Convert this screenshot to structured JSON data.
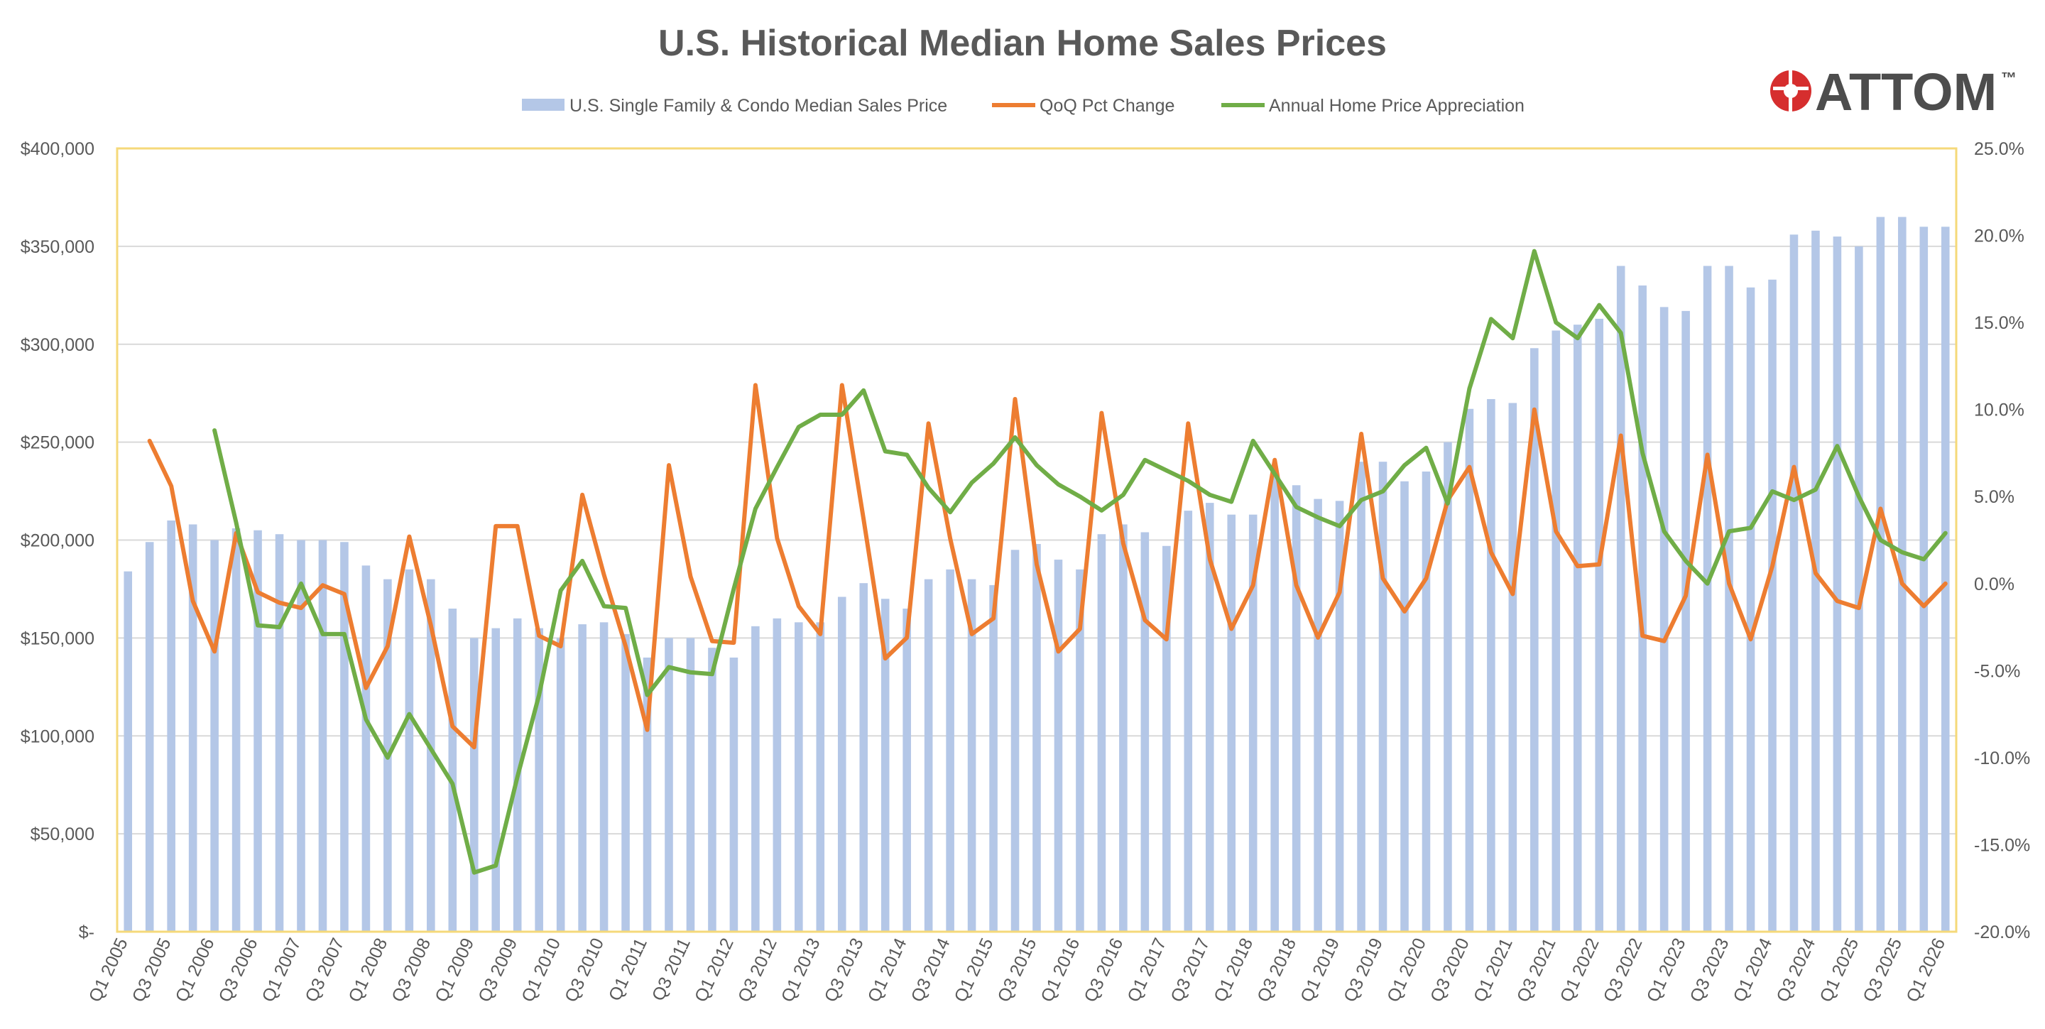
{
  "chart_data": {
    "type": "bar",
    "title": "U.S. Historical Median Home Sales Prices",
    "brand": "ATTOM",
    "trademark": "™",
    "legend": {
      "placement": "top-center",
      "items": [
        {
          "label": "U.S. Single Family & Condo Median Sales Price",
          "type": "bar",
          "color": "#b4c7e7"
        },
        {
          "label": "QoQ Pct Change",
          "type": "line",
          "color": "#ed7d31"
        },
        {
          "label": "Annual Home Price Appreciation",
          "type": "line",
          "color": "#70ad47"
        }
      ]
    },
    "colors": {
      "bars": "#b4c7e7",
      "qoq": "#ed7d31",
      "annual": "#70ad47",
      "plot_border": "#f5d97a",
      "grid": "#d9d9d9",
      "logo_red": "#d62e2e"
    },
    "grid": true,
    "y_left": {
      "ylim": [
        0,
        400000
      ],
      "ticks": [
        "$-",
        "$50,000",
        "$100,000",
        "$150,000",
        "$200,000",
        "$250,000",
        "$300,000",
        "$350,000",
        "$400,000"
      ]
    },
    "y_right": {
      "ylim": [
        -20,
        25
      ],
      "ticks": [
        "-20.0%",
        "-15.0%",
        "-10.0%",
        "-5.0%",
        "0.0%",
        "5.0%",
        "10.0%",
        "15.0%",
        "20.0%",
        "25.0%"
      ]
    },
    "x_tick_labels": [
      "Q1 2005",
      "Q3 2005",
      "Q1 2006",
      "Q3 2006",
      "Q1 2007",
      "Q3 2007",
      "Q1 2008",
      "Q3 2008",
      "Q1 2009",
      "Q3 2009",
      "Q1 2010",
      "Q3 2010",
      "Q1 2011",
      "Q3 2011",
      "Q1 2012",
      "Q3 2012",
      "Q1 2013",
      "Q3 2013",
      "Q1 2014",
      "Q3 2014",
      "Q1 2015",
      "Q3 2015",
      "Q1 2016",
      "Q3 2016",
      "Q1 2017",
      "Q3 2017",
      "Q1 2018",
      "Q3 2018",
      "Q1 2019",
      "Q3 2019",
      "Q1 2020",
      "Q3 2020",
      "Q1 2021",
      "Q3 2021",
      "Q1 2022",
      "Q3 2022",
      "Q1 2023",
      "Q3 2023",
      "Q1 2024",
      "Q3 2024",
      "Q1 2025",
      "Q3 2025",
      "Q1 2026"
    ],
    "categories": [
      "Q1 2005",
      "Q2 2005",
      "Q3 2005",
      "Q4 2005",
      "Q1 2006",
      "Q2 2006",
      "Q3 2006",
      "Q4 2006",
      "Q1 2007",
      "Q2 2007",
      "Q3 2007",
      "Q4 2007",
      "Q1 2008",
      "Q2 2008",
      "Q3 2008",
      "Q4 2008",
      "Q1 2009",
      "Q2 2009",
      "Q3 2009",
      "Q4 2009",
      "Q1 2010",
      "Q2 2010",
      "Q3 2010",
      "Q4 2010",
      "Q1 2011",
      "Q2 2011",
      "Q3 2011",
      "Q4 2011",
      "Q1 2012",
      "Q2 2012",
      "Q3 2012",
      "Q4 2012",
      "Q1 2013",
      "Q2 2013",
      "Q3 2013",
      "Q4 2013",
      "Q1 2014",
      "Q2 2014",
      "Q3 2014",
      "Q4 2014",
      "Q1 2015",
      "Q2 2015",
      "Q3 2015",
      "Q4 2015",
      "Q1 2016",
      "Q2 2016",
      "Q3 2016",
      "Q4 2016",
      "Q1 2017",
      "Q2 2017",
      "Q3 2017",
      "Q4 2017",
      "Q1 2018",
      "Q2 2018",
      "Q3 2018",
      "Q4 2018",
      "Q1 2019",
      "Q2 2019",
      "Q3 2019",
      "Q4 2019",
      "Q1 2020",
      "Q2 2020",
      "Q3 2020",
      "Q4 2020",
      "Q1 2021",
      "Q2 2021",
      "Q3 2021",
      "Q4 2021",
      "Q1 2022",
      "Q2 2022",
      "Q3 2022",
      "Q4 2022",
      "Q1 2023",
      "Q2 2023",
      "Q3 2023",
      "Q4 2023",
      "Q1 2024",
      "Q2 2024",
      "Q3 2024",
      "Q4 2024",
      "Q1 2025",
      "Q2 2025",
      "Q3 2025",
      "Q4 2025",
      "Q1 2026"
    ],
    "series": [
      {
        "name": "U.S. Single Family & Condo Median Sales Price",
        "axis": "left",
        "type": "bar",
        "values": [
          184000,
          199000,
          210000,
          208000,
          200000,
          206000,
          205000,
          203000,
          200000,
          200000,
          199000,
          187000,
          180000,
          185000,
          180000,
          165000,
          150000,
          155000,
          160000,
          155000,
          150000,
          157000,
          158000,
          152000,
          140000,
          150000,
          150000,
          145000,
          140000,
          156000,
          160000,
          158000,
          158000,
          171000,
          178000,
          170000,
          165000,
          180000,
          185000,
          180000,
          177000,
          195000,
          198000,
          190000,
          185000,
          203000,
          208000,
          204000,
          197000,
          215000,
          219000,
          213000,
          213000,
          232000,
          228000,
          221000,
          220000,
          240000,
          240000,
          230000,
          235000,
          250000,
          267000,
          272000,
          270000,
          298000,
          307000,
          310000,
          313000,
          340000,
          330000,
          319000,
          317000,
          340000,
          340000,
          329000,
          333000,
          356000,
          358000,
          355000,
          350000,
          365000,
          365000,
          360000,
          360000
        ]
      },
      {
        "name": "QoQ Pct Change",
        "axis": "right",
        "type": "line",
        "values": [
          null,
          8.2,
          5.6,
          -1.0,
          -3.9,
          2.9,
          -0.5,
          -1.1,
          -1.4,
          -0.1,
          -0.6,
          -6.0,
          -3.6,
          2.7,
          -2.4,
          -8.2,
          -9.4,
          3.3,
          3.3,
          -3.0,
          -3.6,
          5.1,
          0.5,
          -3.6,
          -8.4,
          6.8,
          0.4,
          -3.3,
          -3.4,
          11.4,
          2.6,
          -1.3,
          -2.9,
          11.4,
          3.7,
          -4.3,
          -3.1,
          9.2,
          2.6,
          -2.9,
          -2.0,
          10.6,
          1.1,
          -3.9,
          -2.6,
          9.8,
          2.3,
          -2.1,
          -3.2,
          9.2,
          1.4,
          -2.6,
          -0.1,
          7.1,
          -0.1,
          -3.1,
          -0.5,
          8.6,
          0.3,
          -1.6,
          0.3,
          4.8,
          6.7,
          1.8,
          -0.6,
          10.0,
          3.0,
          1.0,
          1.1,
          8.5,
          -3.0,
          -3.3,
          -0.7,
          7.4,
          0.0,
          -3.2,
          1.0,
          6.7,
          0.6,
          -1.0,
          -1.4,
          4.3,
          0.0,
          -1.3,
          0.0
        ]
      },
      {
        "name": "Annual Home Price Appreciation",
        "axis": "right",
        "type": "line",
        "values": [
          null,
          null,
          null,
          null,
          8.8,
          3.5,
          -2.4,
          -2.5,
          0.0,
          -2.9,
          -2.9,
          -7.8,
          -10.0,
          -7.5,
          -9.5,
          -11.5,
          -16.6,
          -16.2,
          -11.1,
          -6.4,
          -0.4,
          1.3,
          -1.3,
          -1.4,
          -6.4,
          -4.8,
          -5.1,
          -5.2,
          -0.3,
          4.3,
          6.7,
          9.0,
          9.7,
          9.7,
          11.1,
          7.6,
          7.4,
          5.5,
          4.1,
          5.8,
          6.9,
          8.4,
          6.8,
          5.7,
          5.0,
          4.2,
          5.1,
          7.1,
          6.5,
          5.9,
          5.1,
          4.7,
          8.2,
          6.3,
          4.4,
          3.8,
          3.3,
          4.8,
          5.3,
          6.8,
          7.8,
          4.6,
          11.2,
          15.2,
          14.1,
          19.1,
          15.0,
          14.1,
          16.0,
          14.4,
          7.5,
          3.0,
          1.3,
          0.0,
          3.0,
          3.2,
          5.3,
          4.8,
          5.4,
          7.9,
          5.0,
          2.5,
          1.8,
          1.4,
          2.9
        ]
      }
    ]
  }
}
